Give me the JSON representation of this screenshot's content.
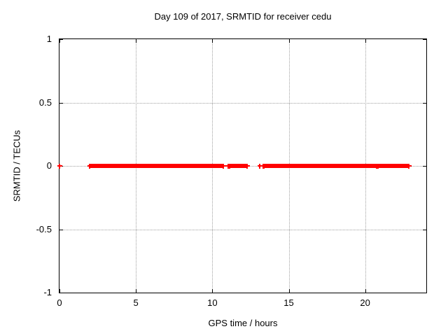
{
  "chart_data": {
    "type": "scatter",
    "title": "Day 109 of 2017, SRMTID for receiver cedu",
    "xlabel": "GPS time / hours",
    "ylabel": "SRMTID / TECUs",
    "xlim": [
      0,
      24
    ],
    "ylim": [
      -1,
      1
    ],
    "grid": "dotted",
    "legend": "none",
    "marker_style": "plus",
    "x_ticks": [
      {
        "value": 0,
        "label": "0"
      },
      {
        "value": 5,
        "label": "5"
      },
      {
        "value": 10,
        "label": "10"
      },
      {
        "value": 15,
        "label": "15"
      },
      {
        "value": 20,
        "label": "20"
      }
    ],
    "y_ticks": [
      {
        "value": 1,
        "label": "1"
      },
      {
        "value": 0.5,
        "label": "0.5"
      },
      {
        "value": 0,
        "label": "0"
      },
      {
        "value": -0.5,
        "label": "-0.5"
      },
      {
        "value": -1,
        "label": "-1"
      }
    ],
    "colors": {
      "series": "#ff0000",
      "axis": "#000000",
      "grid": "#a0a0a0",
      "text": "#000000",
      "background": "#ffffff"
    },
    "series": [
      {
        "name": "SRMTID",
        "y_value": 0,
        "segments_hours": [
          [
            2.0,
            10.75
          ],
          [
            11.15,
            12.3
          ],
          [
            13.4,
            20.75
          ],
          [
            20.87,
            22.9
          ]
        ],
        "isolated_points_hours": [
          0.0,
          11.05,
          13.1,
          13.35
        ]
      }
    ]
  }
}
